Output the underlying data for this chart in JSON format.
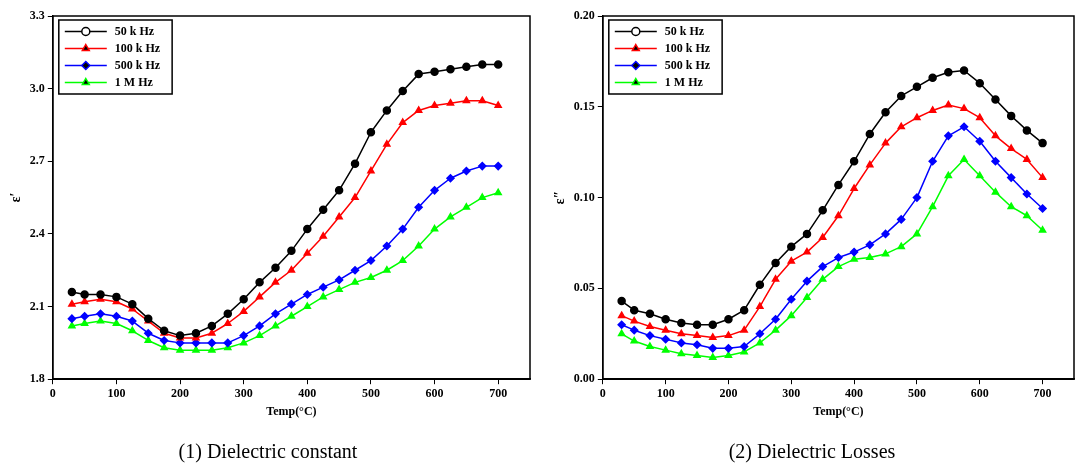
{
  "chart_data": [
    {
      "type": "line",
      "title": "(1) Dielectric constant",
      "xlabel": "Temp(°C)",
      "ylabel": "ε′",
      "legend": "top left",
      "grid": false,
      "line_style": "solid",
      "x": [
        30,
        50,
        75,
        100,
        125,
        150,
        175,
        200,
        225,
        250,
        275,
        300,
        325,
        350,
        375,
        400,
        425,
        450,
        475,
        500,
        525,
        550,
        575,
        600,
        625,
        650,
        675,
        700
      ],
      "xlim": [
        0,
        750
      ],
      "xticks": [
        0,
        100,
        200,
        300,
        400,
        500,
        600,
        700
      ],
      "ylim": [
        1.8,
        3.3
      ],
      "yticks": [
        1.8,
        2.1,
        2.4,
        2.7,
        {
          "value": 3,
          "label": "3.0"
        },
        3.3
      ],
      "series": [
        {
          "name": "50 k Hz",
          "color": "#000000",
          "marker": "circle",
          "values": [
            2.16,
            2.15,
            2.15,
            2.14,
            2.11,
            2.05,
            2.0,
            1.98,
            1.99,
            2.02,
            2.07,
            2.13,
            2.2,
            2.26,
            2.33,
            2.42,
            2.5,
            2.58,
            2.69,
            2.82,
            2.91,
            2.99,
            3.06,
            3.07,
            3.08,
            3.09,
            3.1,
            3.1
          ]
        },
        {
          "name": "100 k Hz",
          "color": "#ff0000",
          "marker": "triangle",
          "values": [
            2.11,
            2.12,
            2.13,
            2.12,
            2.09,
            2.04,
            1.99,
            1.97,
            1.97,
            1.99,
            2.03,
            2.08,
            2.14,
            2.2,
            2.25,
            2.32,
            2.39,
            2.47,
            2.55,
            2.66,
            2.77,
            2.86,
            2.91,
            2.93,
            2.94,
            2.95,
            2.95,
            2.93
          ]
        },
        {
          "name": "500 k Hz",
          "color": "#0000ff",
          "marker": "diamond",
          "values": [
            2.05,
            2.06,
            2.07,
            2.06,
            2.04,
            1.99,
            1.96,
            1.95,
            1.95,
            1.95,
            1.95,
            1.98,
            2.02,
            2.07,
            2.11,
            2.15,
            2.18,
            2.21,
            2.25,
            2.29,
            2.35,
            2.42,
            2.51,
            2.58,
            2.63,
            2.66,
            2.68,
            2.68
          ]
        },
        {
          "name": "1 M Hz",
          "color": "#00ff00",
          "marker": "triangle",
          "values": [
            2.02,
            2.03,
            2.04,
            2.03,
            2.0,
            1.96,
            1.93,
            1.92,
            1.92,
            1.92,
            1.93,
            1.95,
            1.98,
            2.02,
            2.06,
            2.1,
            2.14,
            2.17,
            2.2,
            2.22,
            2.25,
            2.29,
            2.35,
            2.42,
            2.47,
            2.51,
            2.55,
            2.57
          ]
        }
      ]
    },
    {
      "type": "line",
      "title": "(2) Dielectric Losses",
      "xlabel": "Temp(°C)",
      "ylabel": "ε″",
      "legend": "top left",
      "grid": false,
      "line_style": "solid",
      "x": [
        30,
        50,
        75,
        100,
        125,
        150,
        175,
        200,
        225,
        250,
        275,
        300,
        325,
        350,
        375,
        400,
        425,
        450,
        475,
        500,
        525,
        550,
        575,
        600,
        625,
        650,
        675,
        700
      ],
      "xlim": [
        0,
        750
      ],
      "xticks": [
        0,
        100,
        200,
        300,
        400,
        500,
        600,
        700
      ],
      "ylim": [
        0,
        0.2
      ],
      "yticks": [
        {
          "value": 0,
          "label": "0.00"
        },
        {
          "value": 0.05,
          "label": "0.05"
        },
        {
          "value": 0.1,
          "label": "0.10"
        },
        {
          "value": 0.15,
          "label": "0.15"
        },
        {
          "value": 0.2,
          "label": "0.20"
        }
      ],
      "series": [
        {
          "name": "50 k Hz",
          "color": "#000000",
          "marker": "circle",
          "values": [
            0.043,
            0.038,
            0.036,
            0.033,
            0.031,
            0.03,
            0.03,
            0.033,
            0.038,
            0.052,
            0.064,
            0.073,
            0.08,
            0.093,
            0.107,
            0.12,
            0.135,
            0.147,
            0.156,
            0.161,
            0.166,
            0.169,
            0.17,
            0.163,
            0.154,
            0.145,
            0.137,
            0.13
          ]
        },
        {
          "name": "100 k Hz",
          "color": "#ff0000",
          "marker": "triangle",
          "values": [
            0.035,
            0.032,
            0.029,
            0.027,
            0.025,
            0.024,
            0.023,
            0.024,
            0.027,
            0.04,
            0.055,
            0.065,
            0.07,
            0.078,
            0.09,
            0.105,
            0.118,
            0.13,
            0.139,
            0.144,
            0.148,
            0.151,
            0.149,
            0.144,
            0.134,
            0.127,
            0.121,
            0.111
          ]
        },
        {
          "name": "500 k Hz",
          "color": "#0000ff",
          "marker": "diamond",
          "values": [
            0.03,
            0.027,
            0.024,
            0.022,
            0.02,
            0.019,
            0.017,
            0.017,
            0.018,
            0.025,
            0.033,
            0.044,
            0.054,
            0.062,
            0.067,
            0.07,
            0.074,
            0.08,
            0.088,
            0.1,
            0.12,
            0.134,
            0.139,
            0.131,
            0.12,
            0.111,
            0.102,
            0.094
          ]
        },
        {
          "name": "1 M Hz",
          "color": "#00ff00",
          "marker": "triangle",
          "values": [
            0.025,
            0.021,
            0.018,
            0.016,
            0.014,
            0.013,
            0.012,
            0.013,
            0.015,
            0.02,
            0.027,
            0.035,
            0.045,
            0.055,
            0.062,
            0.066,
            0.067,
            0.069,
            0.073,
            0.08,
            0.095,
            0.112,
            0.121,
            0.112,
            0.103,
            0.095,
            0.09,
            0.082
          ]
        }
      ]
    }
  ]
}
